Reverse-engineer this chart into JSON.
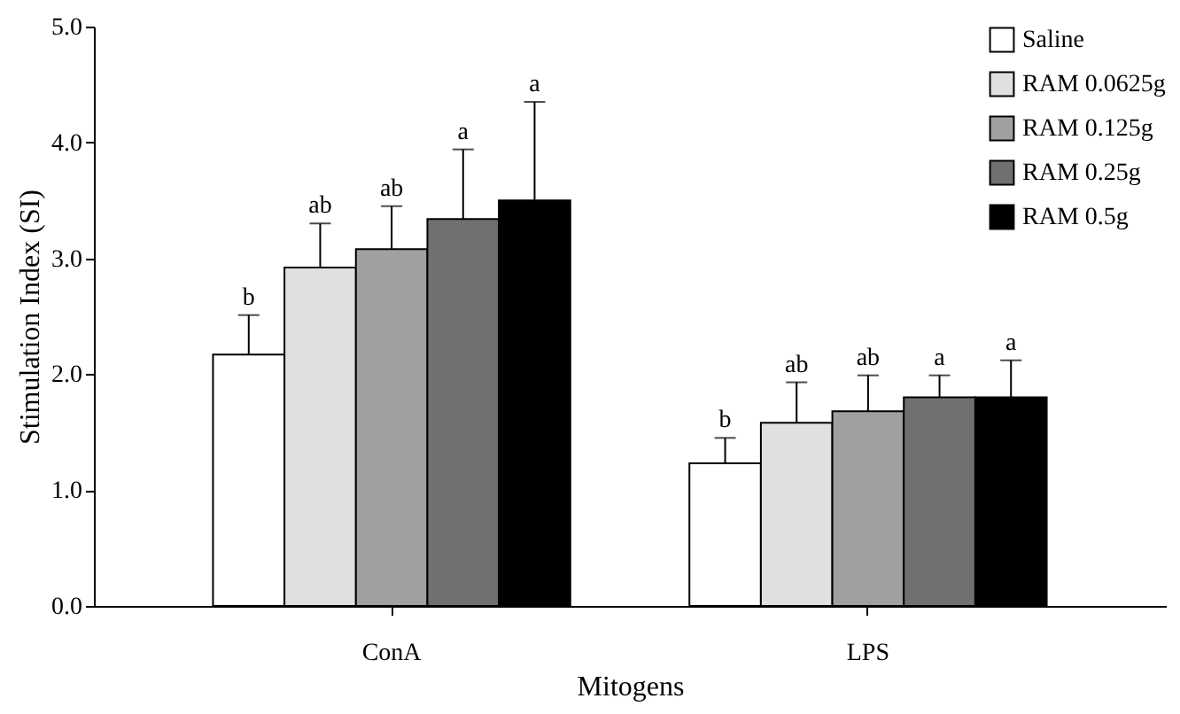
{
  "chart_data": {
    "type": "bar",
    "xlabel": "Mitogens",
    "ylabel": "Stimulation Index (SI)",
    "categories": [
      "ConA",
      "LPS"
    ],
    "series": [
      {
        "name": "Saline",
        "color": "#ffffff",
        "values": [
          2.17,
          1.23
        ],
        "errors": [
          [
            2.17,
            2.51
          ],
          [
            1.23,
            1.45
          ]
        ]
      },
      {
        "name": "RAM 0.0625g",
        "color": "#e0e0e0",
        "values": [
          2.92,
          1.58
        ],
        "errors": [
          [
            2.92,
            3.3
          ],
          [
            1.58,
            1.93
          ]
        ]
      },
      {
        "name": "RAM 0.125g",
        "color": "#a0a0a0",
        "values": [
          3.08,
          1.68
        ],
        "errors": [
          [
            3.08,
            3.45
          ],
          [
            1.68,
            1.99
          ]
        ]
      },
      {
        "name": "RAM 0.25g",
        "color": "#707070",
        "values": [
          3.34,
          1.8
        ],
        "errors": [
          [
            3.34,
            3.94
          ],
          [
            1.8,
            1.99
          ]
        ]
      },
      {
        "name": "RAM 0.5g",
        "color": "#000000",
        "values": [
          3.5,
          1.8
        ],
        "errors": [
          [
            3.5,
            4.35
          ],
          [
            1.8,
            2.12
          ]
        ]
      }
    ],
    "annotations": [
      "b",
      "b",
      "ab",
      "ab",
      "ab",
      "ab",
      "a",
      "a",
      "a",
      "a"
    ],
    "ylim": [
      0,
      5
    ],
    "yticks": [
      {
        "value": 0,
        "label": "0.0"
      },
      {
        "value": 1,
        "label": "1.0"
      },
      {
        "value": 2,
        "label": "2.0"
      },
      {
        "value": 3,
        "label": "3.0"
      },
      {
        "value": 4,
        "label": "4.0"
      },
      {
        "value": 5,
        "label": "5.0"
      }
    ],
    "grid": false,
    "legend": "top right"
  }
}
